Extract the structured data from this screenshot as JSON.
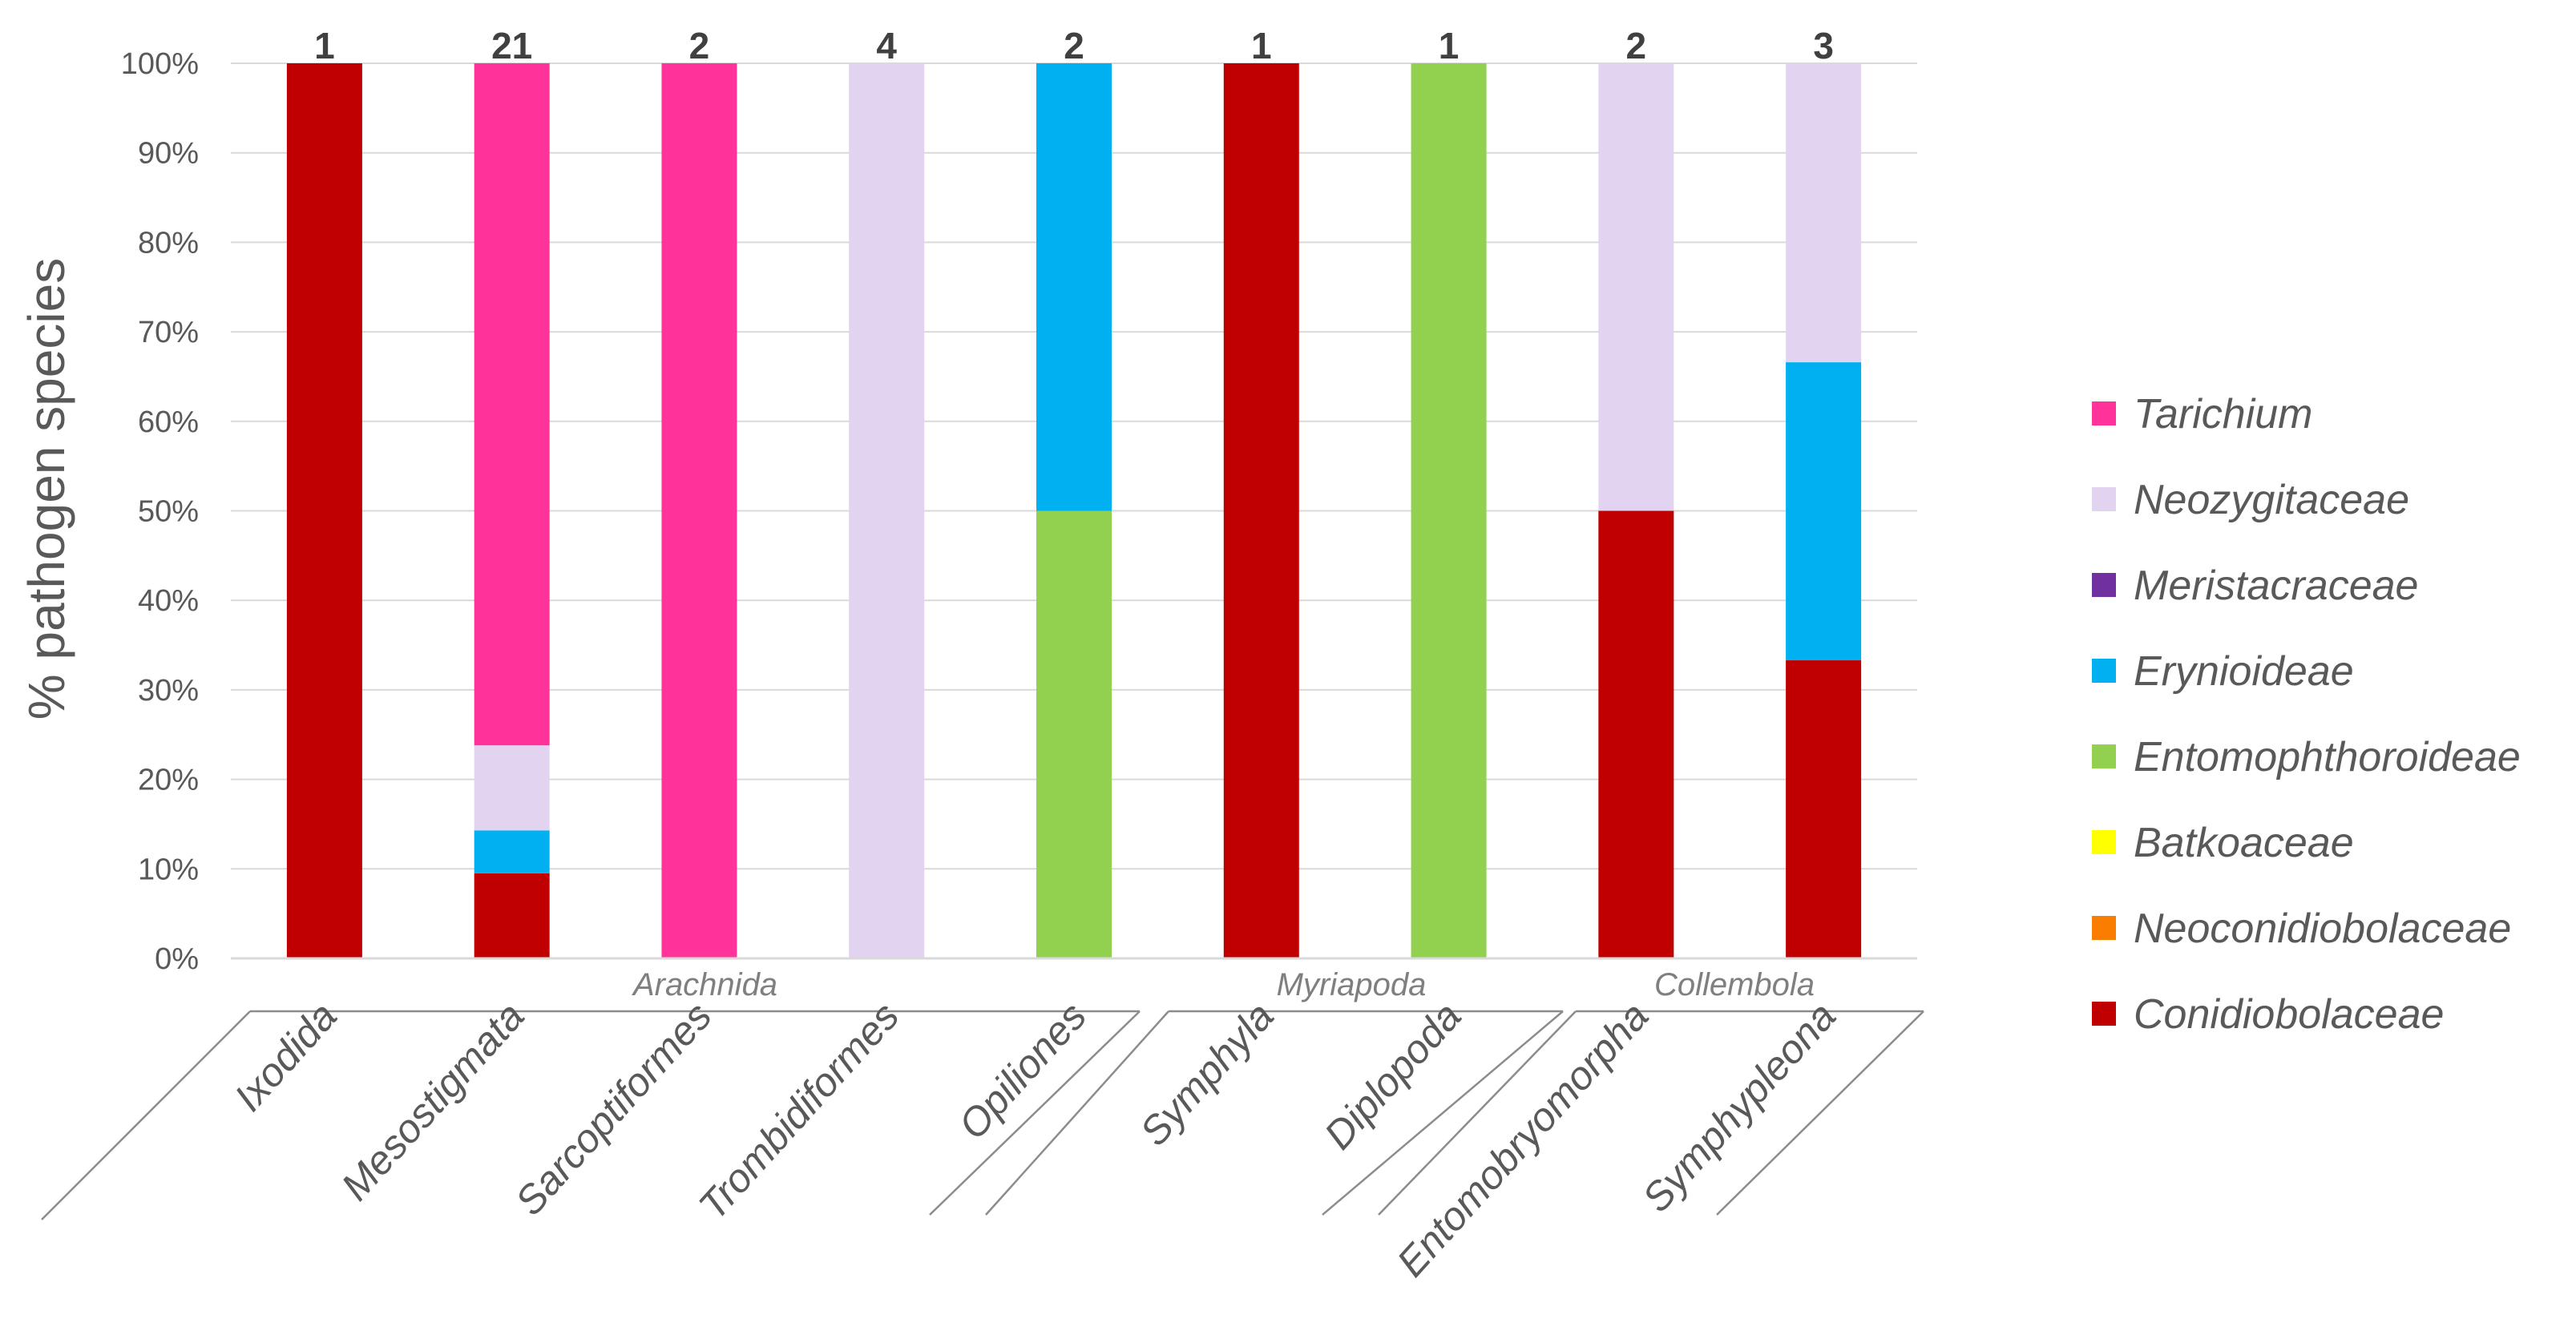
{
  "chart_data": {
    "type": "bar",
    "stacked": true,
    "ylabel": "% pathogen species",
    "ylim": [
      0,
      100
    ],
    "yticks": [
      0,
      10,
      20,
      30,
      40,
      50,
      60,
      70,
      80,
      90,
      100
    ],
    "ytick_labels": [
      "0%",
      "10%",
      "20%",
      "30%",
      "40%",
      "50%",
      "60%",
      "70%",
      "80%",
      "90%",
      "100%"
    ],
    "categories": [
      "Ixodida",
      "Mesostigmata",
      "Sarcoptiformes",
      "Trombidiformes",
      "Opiliones",
      "Symphyla",
      "Diplopoda",
      "Entomobryomorpha",
      "Symphypleona"
    ],
    "counts": [
      "1",
      "21",
      "2",
      "4",
      "2",
      "1",
      "1",
      "2",
      "3"
    ],
    "groups": [
      {
        "name": "Arachnida",
        "from": 0,
        "to": 4
      },
      {
        "name": "Myriapoda",
        "from": 5,
        "to": 6
      },
      {
        "name": "Collembola",
        "from": 7,
        "to": 8
      }
    ],
    "series": [
      {
        "name": "Conidiobolaceae",
        "color": "#c00000",
        "values": [
          100,
          9.5,
          0,
          0,
          0,
          100,
          0,
          50,
          33.3
        ]
      },
      {
        "name": "Neoconidiobolaceae",
        "color": "#fa7d00",
        "values": [
          0,
          0,
          0,
          0,
          0,
          0,
          0,
          0,
          0
        ]
      },
      {
        "name": "Batkoaceae",
        "color": "#ffff00",
        "values": [
          0,
          0,
          0,
          0,
          0,
          0,
          0,
          0,
          0
        ]
      },
      {
        "name": "Entomophthoroideae",
        "color": "#92d050",
        "values": [
          0,
          0,
          0,
          0,
          50,
          0,
          100,
          0,
          0
        ]
      },
      {
        "name": "Erynioideae",
        "color": "#00b0f0",
        "values": [
          0,
          4.8,
          0,
          0,
          50,
          0,
          0,
          0,
          33.3
        ]
      },
      {
        "name": "Meristacraceae",
        "color": "#7030a0",
        "values": [
          0,
          0,
          0,
          0,
          0,
          0,
          0,
          0,
          0
        ]
      },
      {
        "name": "Neozygitaceae",
        "color": "#e2d3f1",
        "values": [
          0,
          9.5,
          0,
          100,
          0,
          0,
          0,
          50,
          33.4
        ]
      },
      {
        "name": "Tarichium",
        "color": "#ff3399",
        "values": [
          0,
          76.2,
          100,
          0,
          0,
          0,
          0,
          0,
          0
        ]
      }
    ],
    "legend_order": [
      "Tarichium",
      "Neozygitaceae",
      "Meristacraceae",
      "Erynioideae",
      "Entomophthoroideae",
      "Batkoaceae",
      "Neoconidiobolaceae",
      "Conidiobolaceae"
    ],
    "legend_position": "right"
  }
}
